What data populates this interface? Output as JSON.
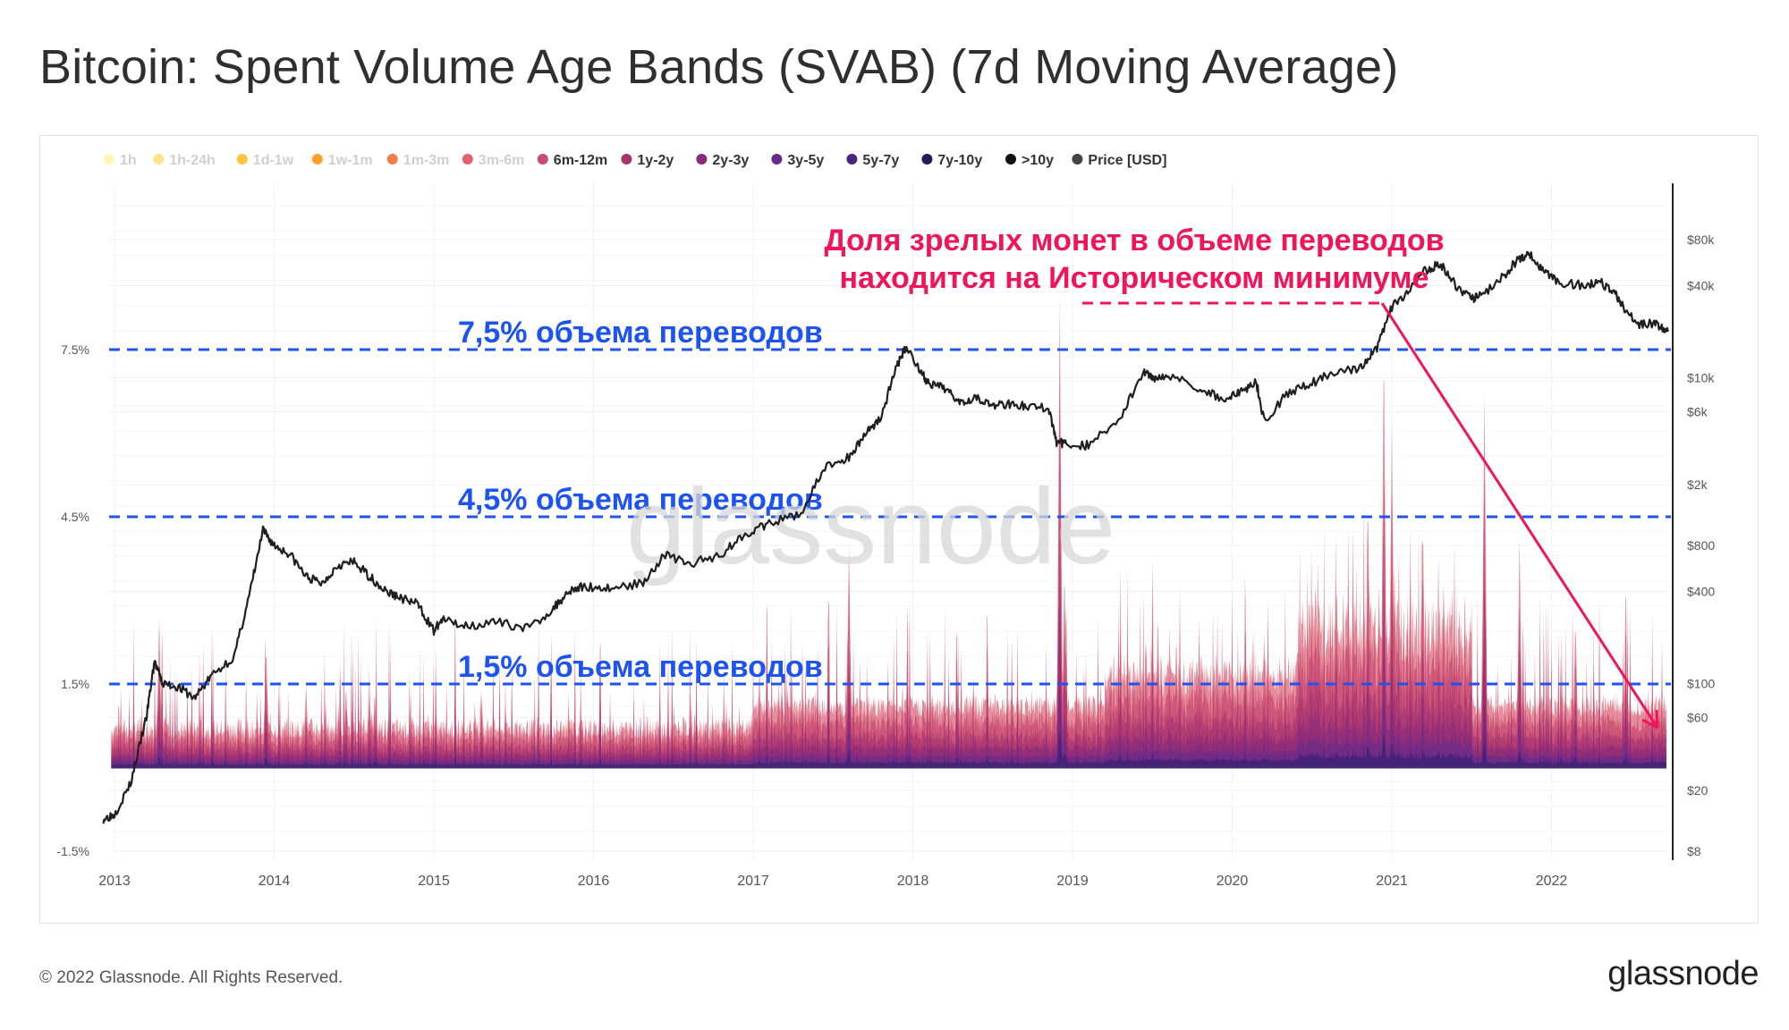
{
  "title": "Bitcoin: Spent Volume Age Bands (SVAB) (7d Moving Average)",
  "footer": {
    "copyright": "© 2022 Glassnode. All Rights Reserved.",
    "logo": "glassnode"
  },
  "watermark": "glassnode",
  "chart_data": {
    "type": "area",
    "legend": [
      {
        "label": "1h",
        "color": "#fff6b8",
        "active": false
      },
      {
        "label": "1h-24h",
        "color": "#ffe48a",
        "active": false
      },
      {
        "label": "1d-1w",
        "color": "#ffc43d",
        "active": false
      },
      {
        "label": "1w-1m",
        "color": "#ffa02e",
        "active": false
      },
      {
        "label": "1m-3m",
        "color": "#f47c4a",
        "active": false
      },
      {
        "label": "3m-6m",
        "color": "#e4606c",
        "active": false
      },
      {
        "label": "6m-12m",
        "color": "#c84a72",
        "active": true
      },
      {
        "label": "1y-2y",
        "color": "#a8336f",
        "active": true
      },
      {
        "label": "2y-3y",
        "color": "#8a2a7a",
        "active": true
      },
      {
        "label": "3y-5y",
        "color": "#6b2a8a",
        "active": true
      },
      {
        "label": "5y-7y",
        "color": "#4a2580",
        "active": true
      },
      {
        "label": "7y-10y",
        "color": "#241a55",
        "active": true
      },
      {
        "label": ">10y",
        "color": "#111111",
        "active": true
      },
      {
        "label": "Price [USD]",
        "color": "#444444",
        "active": true
      }
    ],
    "x_ticks": [
      "2013",
      "2014",
      "2015",
      "2016",
      "2017",
      "2018",
      "2019",
      "2020",
      "2021",
      "2022"
    ],
    "y_left_ticks": [
      "7.5%",
      "4.5%",
      "1.5%",
      "-1.5%"
    ],
    "y_left_values": [
      7.5,
      4.5,
      1.5,
      -1.5
    ],
    "y_right_ticks": [
      "$80k",
      "$40k",
      "$10k",
      "$6k",
      "$2k",
      "$800",
      "$400",
      "$100",
      "$60",
      "$20",
      "$8"
    ],
    "y_right_values": [
      80000,
      40000,
      10000,
      6000,
      2000,
      800,
      400,
      100,
      60,
      20,
      8
    ],
    "price_series": {
      "name": "Price [USD]",
      "x": [
        2012.93,
        2013.0,
        2013.1,
        2013.2,
        2013.25,
        2013.3,
        2013.4,
        2013.5,
        2013.6,
        2013.75,
        2013.85,
        2013.93,
        2014.0,
        2014.1,
        2014.2,
        2014.3,
        2014.4,
        2014.5,
        2014.6,
        2014.7,
        2014.8,
        2014.9,
        2015.0,
        2015.05,
        2015.2,
        2015.4,
        2015.6,
        2015.75,
        2015.85,
        2015.95,
        2016.1,
        2016.3,
        2016.45,
        2016.6,
        2016.8,
        2016.95,
        2017.1,
        2017.3,
        2017.45,
        2017.6,
        2017.7,
        2017.8,
        2017.9,
        2017.96,
        2018.05,
        2018.1,
        2018.2,
        2018.3,
        2018.4,
        2018.5,
        2018.6,
        2018.7,
        2018.85,
        2018.9,
        2018.96,
        2019.1,
        2019.3,
        2019.45,
        2019.5,
        2019.6,
        2019.8,
        2019.95,
        2020.05,
        2020.15,
        2020.2,
        2020.35,
        2020.5,
        2020.65,
        2020.8,
        2020.9,
        2021.0,
        2021.1,
        2021.2,
        2021.3,
        2021.4,
        2021.5,
        2021.55,
        2021.7,
        2021.8,
        2021.86,
        2021.95,
        2022.05,
        2022.2,
        2022.3,
        2022.4,
        2022.45,
        2022.55,
        2022.65,
        2022.73
      ],
      "y": [
        13,
        14,
        22,
        60,
        140,
        100,
        95,
        80,
        110,
        150,
        400,
        1000,
        800,
        700,
        500,
        450,
        600,
        620,
        500,
        400,
        360,
        330,
        220,
        260,
        240,
        250,
        230,
        310,
        410,
        430,
        420,
        450,
        700,
        600,
        700,
        960,
        1100,
        1300,
        2600,
        3000,
        4300,
        5500,
        12000,
        16000,
        11000,
        9000,
        8500,
        7000,
        7500,
        6500,
        6800,
        6500,
        6300,
        3800,
        3700,
        3600,
        5500,
        11000,
        10000,
        10500,
        8500,
        7200,
        8000,
        9500,
        5200,
        8000,
        9200,
        11000,
        11500,
        15000,
        29000,
        35000,
        50000,
        56000,
        40000,
        33000,
        34000,
        46000,
        61000,
        64000,
        50000,
        42000,
        40000,
        43000,
        35000,
        29000,
        22000,
        23000,
        20000
      ]
    },
    "reference_lines": [
      {
        "value": 7.5,
        "label": "7,5% объема переводов"
      },
      {
        "value": 4.5,
        "label": "4,5% объема переводов"
      },
      {
        "value": 1.5,
        "label": "1,5% объема переводов"
      }
    ],
    "annotation": {
      "line1": "Доля зрелых монет в объеме переводов",
      "line2": "находится на Историческом минимуме"
    },
    "grid": true,
    "legend_position": "top-left"
  }
}
